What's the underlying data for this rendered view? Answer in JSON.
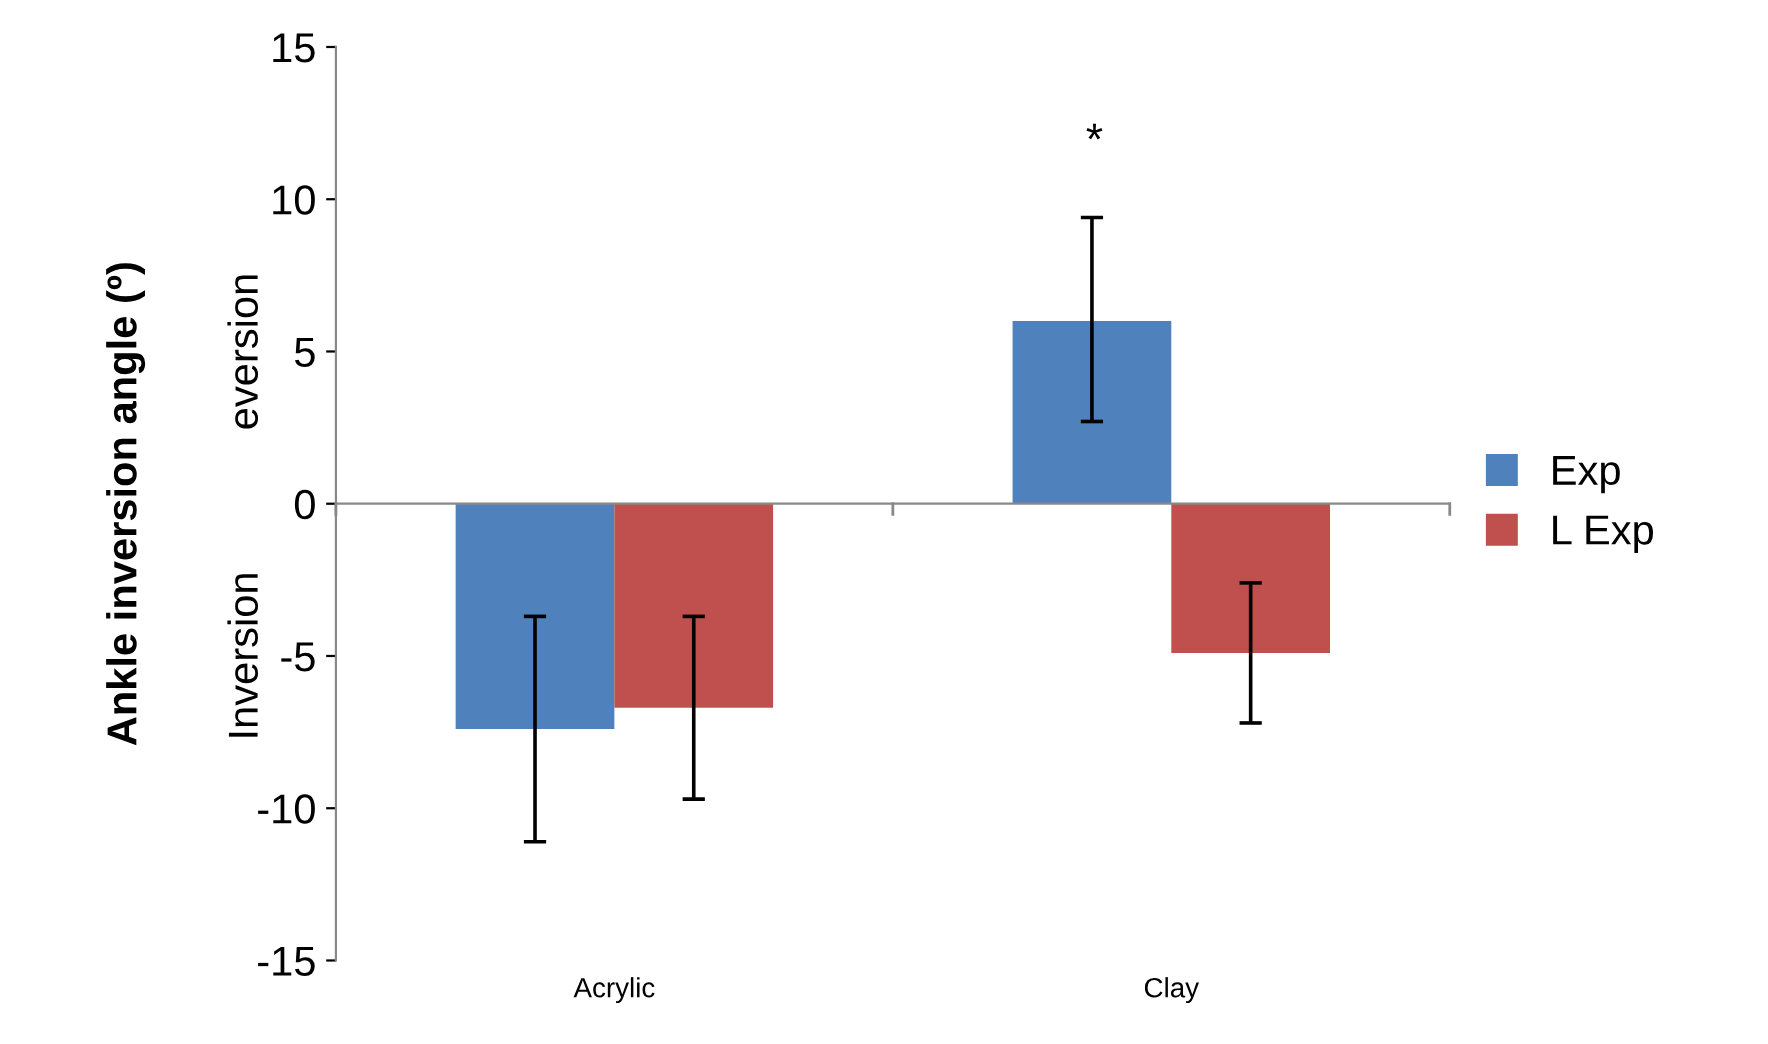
{
  "chart_data": {
    "type": "bar",
    "ylabel": "Ankle inversion angle (º)",
    "categories": [
      "Acrylic",
      "Clay"
    ],
    "series": [
      {
        "name": "Exp",
        "color": "#4f81bd",
        "values": [
          -7.4,
          6.0
        ],
        "errors": [
          [
            -11.1,
            -3.7
          ],
          [
            2.7,
            9.4
          ]
        ]
      },
      {
        "name": "L Exp",
        "color": "#c0504d",
        "values": [
          -6.7,
          -4.9
        ],
        "errors": [
          [
            -9.7,
            -3.7
          ],
          [
            -7.2,
            -2.6
          ]
        ]
      }
    ],
    "ylim": [
      -15,
      15
    ],
    "yticks": [
      -15,
      -10,
      -5,
      0,
      5,
      10,
      15
    ],
    "legend": "right",
    "annotations": [
      "*",
      "eversion",
      "Inversion"
    ]
  }
}
